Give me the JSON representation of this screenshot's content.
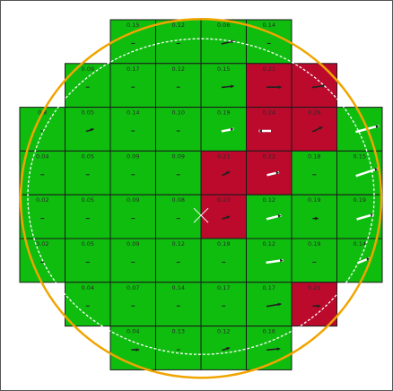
{
  "colors": {
    "pass": "#0fbd0f",
    "fail": "#bb0a2c",
    "wafer_outline": "#f0a500",
    "inner_boundary": "#ffffff",
    "background": "#ffffff",
    "die_border": "#1a1a1a",
    "vector_arrow": "#222222",
    "vector_arrow_light": "#ffffff"
  },
  "wafer": {
    "rows": [
      {
        "row": 0,
        "cols": [
          2,
          3,
          4,
          5
        ],
        "values": [
          "0.15",
          "0.12",
          "0.06",
          "0.14"
        ],
        "status": [
          "pass",
          "pass",
          "pass",
          "pass"
        ]
      },
      {
        "row": 1,
        "cols": [
          1,
          2,
          3,
          4,
          5,
          6
        ],
        "values": [
          "0.09",
          "0.17",
          "0.12",
          "0.15",
          "0.21",
          ""
        ],
        "status": [
          "pass",
          "pass",
          "pass",
          "pass",
          "fail",
          "fail"
        ]
      },
      {
        "row": 2,
        "cols": [
          0,
          1,
          2,
          3,
          4,
          5,
          6,
          7
        ],
        "values": [
          "0.8",
          "0.05",
          "0.14",
          "0.10",
          "0.19",
          "0.24",
          "0.26",
          ""
        ],
        "status": [
          "pass",
          "pass",
          "pass",
          "pass",
          "pass",
          "fail",
          "fail",
          "pass"
        ]
      },
      {
        "row": 3,
        "cols": [
          0,
          1,
          2,
          3,
          4,
          5,
          6,
          7
        ],
        "values": [
          "0.04",
          "0.05",
          "0.09",
          "0.09",
          "0.21",
          "0.22",
          "0.18",
          "0.15"
        ],
        "status": [
          "pass",
          "pass",
          "pass",
          "pass",
          "fail",
          "fail",
          "pass",
          "pass"
        ]
      },
      {
        "row": 4,
        "cols": [
          0,
          1,
          2,
          3,
          4,
          5,
          6,
          7
        ],
        "values": [
          "0.02",
          "0.05",
          "0.09",
          "0.08",
          "0.23",
          "0.12",
          "0.19",
          "0.19"
        ],
        "status": [
          "pass",
          "pass",
          "pass",
          "pass",
          "fail",
          "pass",
          "pass",
          "pass"
        ]
      },
      {
        "row": 5,
        "cols": [
          0,
          1,
          2,
          3,
          4,
          5,
          6,
          7
        ],
        "values": [
          "0.02",
          "0.05",
          "0.09",
          "0.12",
          "0.19",
          "0.12",
          "0.19",
          "0.14"
        ],
        "status": [
          "pass",
          "pass",
          "pass",
          "pass",
          "pass",
          "pass",
          "pass",
          "pass"
        ]
      },
      {
        "row": 6,
        "cols": [
          1,
          2,
          3,
          4,
          5,
          6
        ],
        "values": [
          "0.04",
          "0.07",
          "0.14",
          "0.17",
          "0.17",
          "0.21"
        ],
        "status": [
          "pass",
          "pass",
          "pass",
          "pass",
          "pass",
          "fail"
        ]
      },
      {
        "row": 7,
        "cols": [
          2,
          3,
          4,
          5
        ],
        "values": [
          "0.04",
          "0.13",
          "0.12",
          "0.16"
        ],
        "status": [
          "pass",
          "pass",
          "pass",
          "pass"
        ]
      }
    ],
    "vectors": [
      {
        "row": 0,
        "col": 4,
        "dx": 0.55,
        "dy": -0.12
      },
      {
        "row": 1,
        "col": 4,
        "dx": 0.5,
        "dy": -0.05
      },
      {
        "row": 1,
        "col": 5,
        "dx": 0.6,
        "dy": 0.0
      },
      {
        "row": 1,
        "col": 6,
        "dx": 0.55,
        "dy": -0.08
      },
      {
        "row": 2,
        "col": 1,
        "dx": 0.3,
        "dy": -0.1
      },
      {
        "row": 2,
        "col": 4,
        "dx": 0.5,
        "dy": -0.1,
        "light": true
      },
      {
        "row": 2,
        "col": 5,
        "dx": -0.5,
        "dy": 0.0,
        "light": true
      },
      {
        "row": 2,
        "col": 6,
        "dx": 0.4,
        "dy": -0.2
      },
      {
        "row": 2,
        "col": 7,
        "dx": 0.95,
        "dy": -0.25,
        "light": true
      },
      {
        "row": 3,
        "col": 4,
        "dx": 0.3,
        "dy": -0.15
      },
      {
        "row": 3,
        "col": 5,
        "dx": 0.5,
        "dy": -0.12,
        "light": true
      },
      {
        "row": 3,
        "col": 7,
        "dx": 0.9,
        "dy": -0.3,
        "light": true
      },
      {
        "row": 4,
        "col": 4,
        "dx": 0.3,
        "dy": -0.1
      },
      {
        "row": 4,
        "col": 5,
        "dx": 0.6,
        "dy": -0.15,
        "light": true
      },
      {
        "row": 4,
        "col": 6,
        "dx": 0.2,
        "dy": 0.0
      },
      {
        "row": 4,
        "col": 7,
        "dx": 0.7,
        "dy": -0.2,
        "light": true
      },
      {
        "row": 5,
        "col": 5,
        "dx": 0.7,
        "dy": -0.1,
        "light": true
      },
      {
        "row": 5,
        "col": 7,
        "dx": 0.5,
        "dy": -0.2,
        "light": true
      },
      {
        "row": 6,
        "col": 5,
        "dx": 0.6,
        "dy": -0.1
      },
      {
        "row": 6,
        "col": 6,
        "dx": 0.3,
        "dy": 0.0
      },
      {
        "row": 7,
        "col": 2,
        "dx": 0.3,
        "dy": 0.0
      },
      {
        "row": 7,
        "col": 4,
        "dx": 0.3,
        "dy": -0.1
      },
      {
        "row": 7,
        "col": 5,
        "dx": 0.55,
        "dy": -0.05
      }
    ]
  }
}
